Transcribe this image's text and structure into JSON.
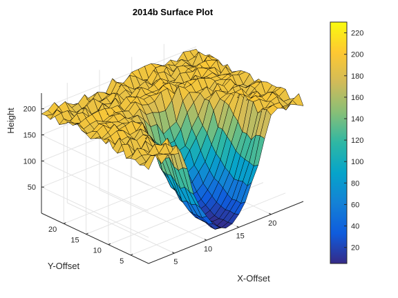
{
  "chart_data": {
    "type": "surface",
    "title": "2014b Surface Plot",
    "xlabel": "X-Offset",
    "ylabel": "Y-Offset",
    "zlabel": "Height",
    "xlim": [
      1,
      25
    ],
    "ylim": [
      1,
      25
    ],
    "zlim": [
      0,
      230
    ],
    "x_ticks": [
      "5",
      "10",
      "15",
      "20"
    ],
    "y_ticks": [
      "5",
      "10",
      "15",
      "20"
    ],
    "z_ticks": [
      "50",
      "100",
      "150",
      "200"
    ],
    "grid": true,
    "colormap": "parula",
    "colorbar": {
      "range": [
        5,
        230
      ],
      "ticks": [
        "20",
        "40",
        "60",
        "80",
        "100",
        "120",
        "140",
        "160",
        "180",
        "200",
        "220"
      ]
    },
    "surface": {
      "x": [
        1,
        25
      ],
      "y": [
        1,
        25
      ],
      "grid_points": 25,
      "plateau_height": 192,
      "plateau_noise": 12,
      "pit_center": [
        13,
        3
      ],
      "pit_floor": 5,
      "pit_depth_at_far_edge": 160
    }
  },
  "colors": {
    "parula": [
      "#352a87",
      "#0f5cdd",
      "#1481d6",
      "#06a4ca",
      "#2eb7a4",
      "#87bf77",
      "#d1bb59",
      "#fec832",
      "#f9fb0e"
    ]
  }
}
